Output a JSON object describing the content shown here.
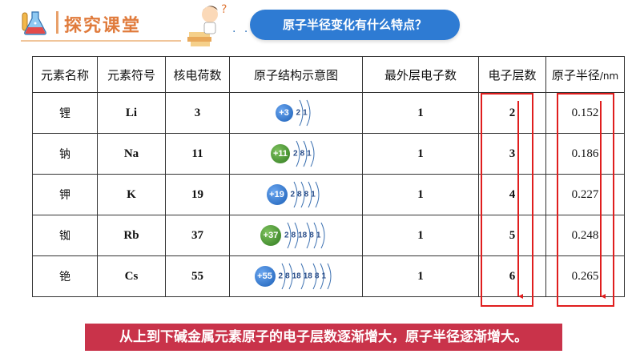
{
  "header": {
    "title": "探究课堂",
    "question": "原子半径变化有什么特点？"
  },
  "table": {
    "headers": [
      "元素名称",
      "元素符号",
      "核电荷数",
      "原子结构示意图",
      "最外层电子数",
      "电子层数",
      "原子半径"
    ],
    "radius_unit": "/nm",
    "rows": [
      {
        "name": "锂",
        "symbol": "Li",
        "charge": "3",
        "nucleus": "+3",
        "shells": [
          "2",
          "1"
        ],
        "outer": "1",
        "layers": "2",
        "radius": "0.152",
        "color": "blue"
      },
      {
        "name": "钠",
        "symbol": "Na",
        "charge": "11",
        "nucleus": "+11",
        "shells": [
          "2",
          "8",
          "1"
        ],
        "outer": "1",
        "layers": "3",
        "radius": "0.186",
        "color": "green"
      },
      {
        "name": "钾",
        "symbol": "K",
        "charge": "19",
        "nucleus": "+19",
        "shells": [
          "2",
          "8",
          "8",
          "1"
        ],
        "outer": "1",
        "layers": "4",
        "radius": "0.227",
        "color": "blue"
      },
      {
        "name": "铷",
        "symbol": "Rb",
        "charge": "37",
        "nucleus": "+37",
        "shells": [
          "2",
          "8",
          "18",
          "8",
          "1"
        ],
        "outer": "1",
        "layers": "5",
        "radius": "0.248",
        "color": "green"
      },
      {
        "name": "铯",
        "symbol": "Cs",
        "charge": "55",
        "nucleus": "+55",
        "shells": [
          "2",
          "8",
          "18",
          "18",
          "8",
          "1"
        ],
        "outer": "1",
        "layers": "6",
        "radius": "0.265",
        "color": "blue"
      }
    ]
  },
  "conclusion": "从上到下碱金属元素原子的电子层数逐渐增大，原子半径逐渐增大。",
  "colors": {
    "highlight": "#e01e1e",
    "banner": "#c9334a",
    "bubble": "#2e7bd3",
    "title": "#e07b3c"
  }
}
